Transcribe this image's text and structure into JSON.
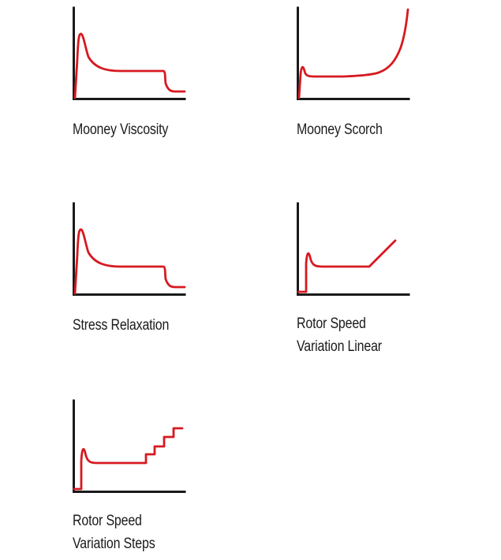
{
  "colors": {
    "axis": "#1a1a1a",
    "curve": "#d71920",
    "background": "#ffffff"
  },
  "panels": [
    {
      "caption_lines": [
        "Mooney Viscosity"
      ]
    },
    {
      "caption_lines": [
        "Mooney Scorch"
      ]
    },
    {
      "caption_lines": [
        "Stress Relaxation"
      ]
    },
    {
      "caption_lines": [
        "Rotor Speed",
        "Variation Linear"
      ]
    },
    {
      "caption_lines": [
        "Rotor Speed",
        "Variation Steps"
      ]
    }
  ]
}
